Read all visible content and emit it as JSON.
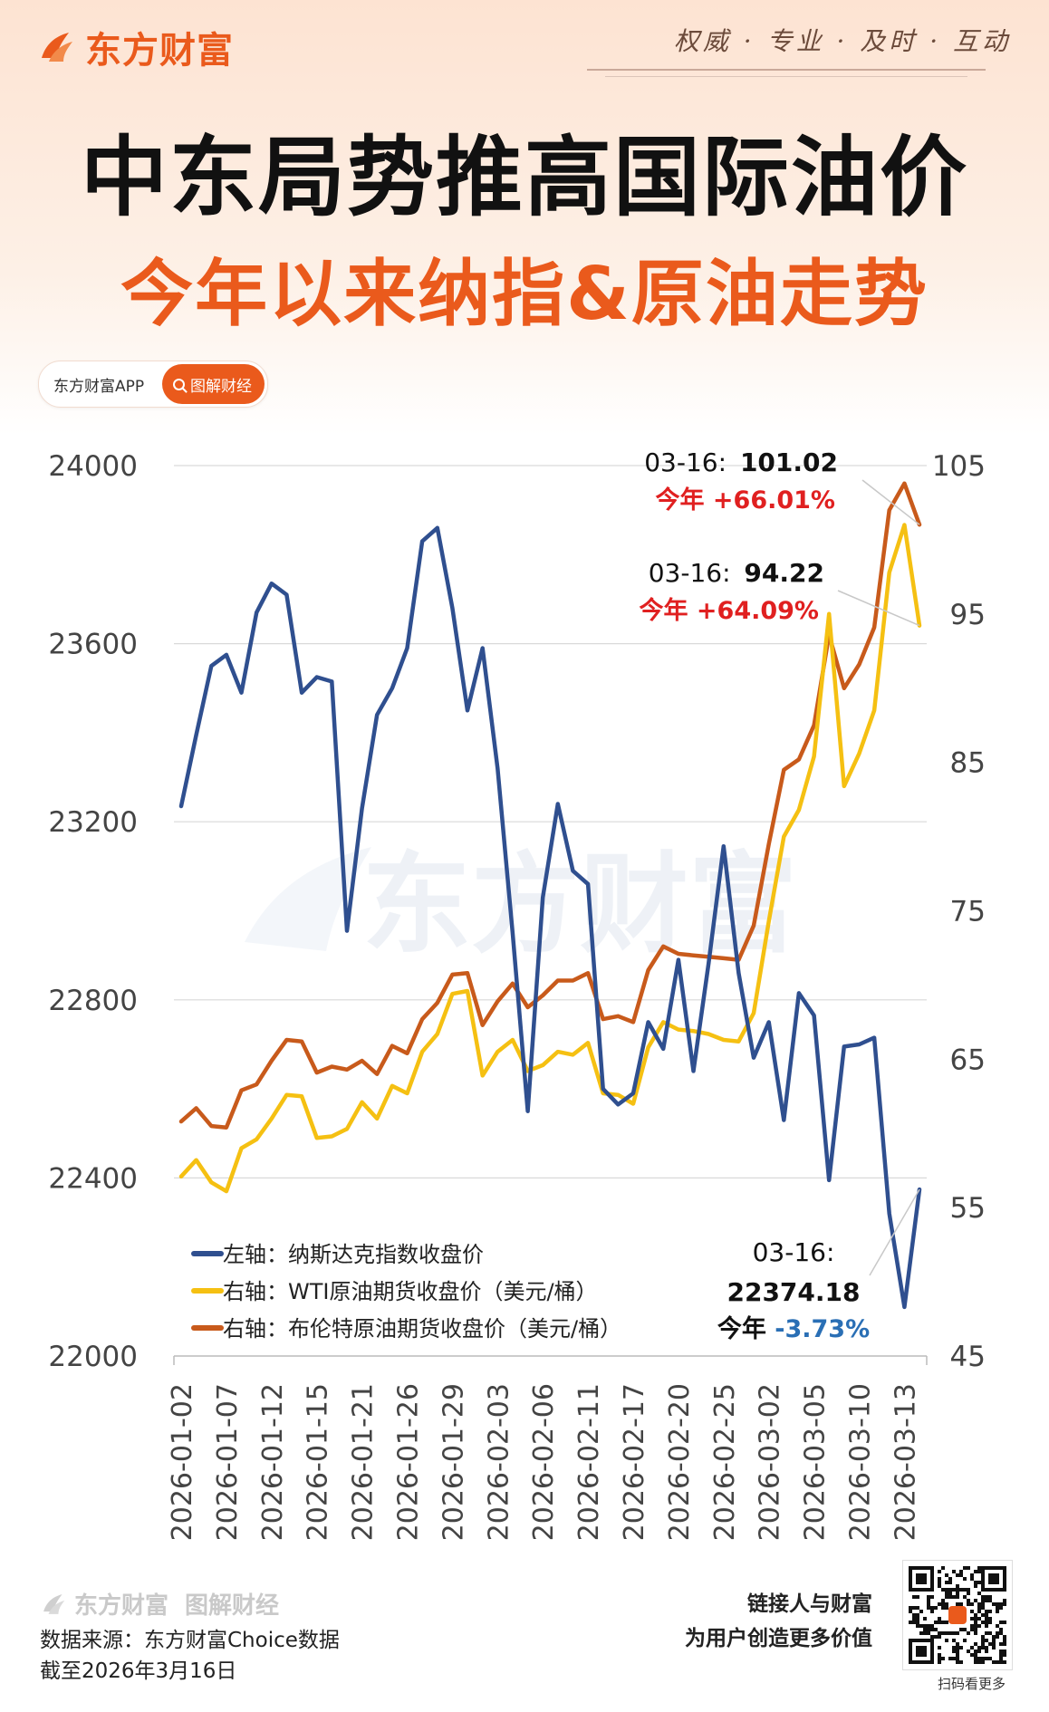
{
  "header": {
    "brand": "东方财富",
    "slogan": "权威 · 专业 · 及时 · 互动",
    "title": "中东局势推高国际油价",
    "subtitle": "今年以来纳指&原油走势",
    "app_label": "东方财富APP",
    "section_label": "图解财经"
  },
  "chart_data": {
    "type": "line",
    "title": "",
    "watermark": "东方财富",
    "left_axis": {
      "ylim": [
        22000,
        24000
      ],
      "ticks": [
        "24000",
        "23600",
        "23200",
        "22800",
        "22400",
        "22000"
      ]
    },
    "right_axis": {
      "ylim": [
        45,
        105
      ],
      "ticks": [
        "105",
        "95",
        "85",
        "75",
        "65",
        "55",
        "45"
      ]
    },
    "x_tick_labels": [
      "2026-01-02",
      "2026-01-07",
      "2026-01-12",
      "2026-01-15",
      "2026-01-21",
      "2026-01-26",
      "2026-01-29",
      "2026-02-03",
      "2026-02-06",
      "2026-02-11",
      "2026-02-17",
      "2026-02-20",
      "2026-02-25",
      "2026-03-02",
      "2026-03-05",
      "2026-03-10",
      "2026-03-13"
    ],
    "x": [
      "01-02",
      "01-05",
      "01-06",
      "01-07",
      "01-08",
      "01-09",
      "01-12",
      "01-13",
      "01-14",
      "01-15",
      "01-16",
      "01-20",
      "01-21",
      "01-22",
      "01-23",
      "01-26",
      "01-27",
      "01-28",
      "01-29",
      "01-30",
      "02-02",
      "02-03",
      "02-04",
      "02-05",
      "02-06",
      "02-09",
      "02-10",
      "02-11",
      "02-12",
      "02-13",
      "02-17",
      "02-18",
      "02-19",
      "02-20",
      "02-23",
      "02-24",
      "02-25",
      "02-26",
      "02-27",
      "03-02",
      "03-03",
      "03-04",
      "03-05",
      "03-06",
      "03-09",
      "03-10",
      "03-11",
      "03-12",
      "03-13",
      "03-16"
    ],
    "series": [
      {
        "name": "左轴：纳斯达克指数收盘价",
        "axis": "left",
        "color": "#2f4f8f",
        "values": [
          23235,
          23395,
          23550,
          23575,
          23490,
          23670,
          23735,
          23710,
          23490,
          23525,
          23515,
          22955,
          23230,
          23440,
          23500,
          23590,
          23830,
          23860,
          23680,
          23450,
          23590,
          23320,
          22950,
          22550,
          23030,
          23240,
          23090,
          23060,
          22600,
          22565,
          22590,
          22750,
          22690,
          22890,
          22640,
          22880,
          23145,
          22860,
          22670,
          22750,
          22530,
          22815,
          22765,
          22395,
          22695,
          22700,
          22715,
          22320,
          22110,
          22374.18
        ]
      },
      {
        "name": "右轴：WTI原油期货收盘价（美元/桶）",
        "axis": "right",
        "color": "#f5c012",
        "values": [
          57.1,
          58.2,
          56.7,
          56.1,
          59.0,
          59.6,
          61.0,
          62.6,
          62.5,
          59.7,
          59.8,
          60.3,
          62.1,
          61.0,
          63.2,
          62.7,
          65.5,
          66.7,
          69.4,
          69.6,
          63.9,
          65.5,
          66.3,
          64.2,
          64.6,
          65.5,
          65.3,
          66.1,
          62.7,
          62.6,
          62.0,
          65.8,
          67.5,
          67.0,
          66.9,
          66.7,
          66.3,
          66.2,
          68.1,
          74.3,
          80.0,
          81.8,
          85.4,
          95.0,
          83.4,
          85.6,
          88.5,
          97.8,
          101.0,
          94.22
        ]
      },
      {
        "name": "右轴：布伦特原油期货收盘价（美元/桶）",
        "axis": "right",
        "color": "#c85a1b",
        "values": [
          60.8,
          61.7,
          60.5,
          60.4,
          62.9,
          63.3,
          64.9,
          66.3,
          66.2,
          64.1,
          64.5,
          64.3,
          64.9,
          64.0,
          65.9,
          65.4,
          67.7,
          68.8,
          70.7,
          70.8,
          67.3,
          68.9,
          70.1,
          68.5,
          69.3,
          70.3,
          70.3,
          70.8,
          67.7,
          67.9,
          67.5,
          71.0,
          72.6,
          72.1,
          72.0,
          71.9,
          71.8,
          71.7,
          74.0,
          79.5,
          84.5,
          85.2,
          87.5,
          93.6,
          90.0,
          91.6,
          94.1,
          102.0,
          103.8,
          101.02
        ]
      }
    ],
    "annotations": [
      {
        "label": "03-16:",
        "value": "101.02",
        "change_label": "今年",
        "change": "+66.01%",
        "change_color": "#e02020"
      },
      {
        "label": "03-16:",
        "value": "94.22",
        "change_label": "今年",
        "change": "+64.09%",
        "change_color": "#e02020"
      },
      {
        "label": "03-16:",
        "value": "22374.18",
        "change_label": "今年",
        "change": "-3.73%",
        "change_color": "#2a6fb5"
      }
    ],
    "legend_position": "bottom-left",
    "grid": true
  },
  "footer": {
    "brand": "东方财富",
    "brand_section": "图解财经",
    "source": "数据来源：东方财富Choice数据",
    "as_of": "截至2026年3月16日",
    "slogan1": "链接人与财富",
    "slogan2": "为用户创造更多价值",
    "qr_caption": "扫码看更多"
  }
}
